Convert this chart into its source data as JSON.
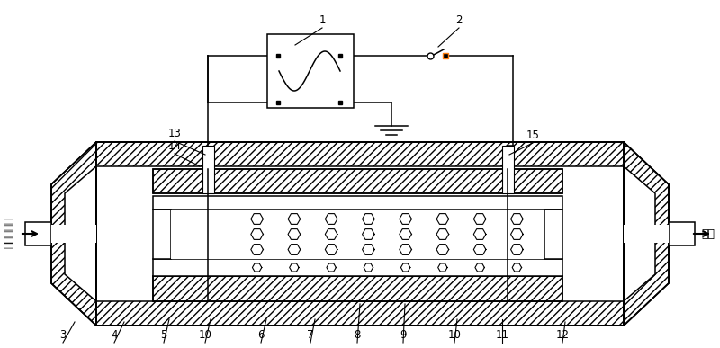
{
  "bg_color": "#ffffff",
  "line_color": "#000000",
  "figsize": [
    8.0,
    3.87
  ],
  "dpi": 100,
  "left_text": "柴油机尾气",
  "right_text": "大气"
}
